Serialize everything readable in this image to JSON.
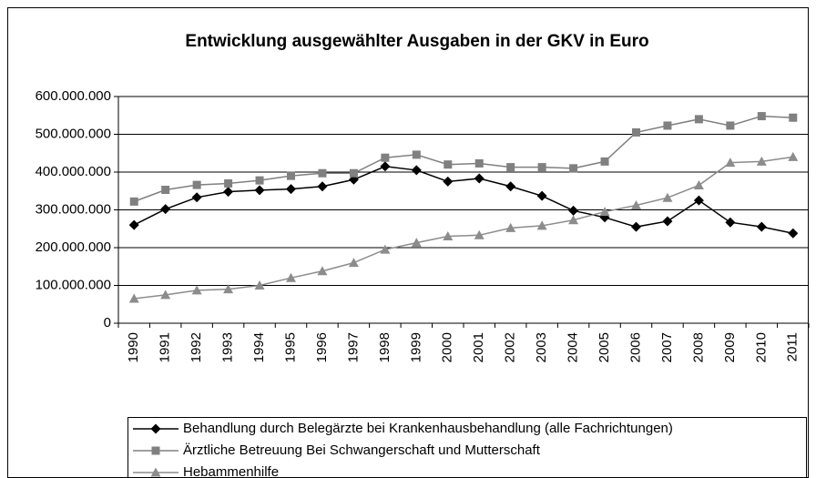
{
  "chart_data": {
    "type": "line",
    "title": "Entwicklung ausgewählter Ausgaben in der GKV in Euro",
    "categories": [
      "1990",
      "1991",
      "1992",
      "1993",
      "1994",
      "1995",
      "1996",
      "1997",
      "1998",
      "1999",
      "2000",
      "2001",
      "2002",
      "2003",
      "2004",
      "2005",
      "2006",
      "2007",
      "2008",
      "2009",
      "2010",
      "2011"
    ],
    "series": [
      {
        "name": "Behandlung durch Belegärzte bei Krankenhausbehandlung (alle Fachrichtungen)",
        "color": "#000000",
        "marker": "diamond",
        "values": [
          260000000,
          302000000,
          333000000,
          348000000,
          352000000,
          355000000,
          362000000,
          380000000,
          415000000,
          405000000,
          375000000,
          383000000,
          362000000,
          337000000,
          298000000,
          280000000,
          255000000,
          270000000,
          325000000,
          267000000,
          255000000,
          238000000
        ]
      },
      {
        "name": "Ärztliche Betreuung Bei Schwangerschaft und Mutterschaft",
        "color": "#808080",
        "marker": "square",
        "values": [
          322000000,
          353000000,
          366000000,
          370000000,
          378000000,
          390000000,
          397000000,
          397000000,
          438000000,
          446000000,
          420000000,
          423000000,
          413000000,
          413000000,
          410000000,
          428000000,
          505000000,
          523000000,
          540000000,
          523000000,
          548000000,
          544000000
        ]
      },
      {
        "name": "Hebammenhilfe",
        "color": "#8c8c8c",
        "marker": "triangle",
        "values": [
          65000000,
          75000000,
          87000000,
          90000000,
          100000000,
          120000000,
          138000000,
          160000000,
          195000000,
          213000000,
          230000000,
          233000000,
          252000000,
          258000000,
          273000000,
          295000000,
          312000000,
          332000000,
          365000000,
          425000000,
          428000000,
          440000000
        ]
      }
    ],
    "ylim": [
      0,
      600000000
    ],
    "yticks": [
      0,
      {
        "value": 100000000,
        "label": "100.000.000"
      },
      {
        "value": 200000000,
        "label": "200.000.000"
      },
      {
        "value": 300000000,
        "label": "300.000.000"
      },
      {
        "value": 400000000,
        "label": "400.000.000"
      },
      {
        "value": 500000000,
        "label": "500.000.000"
      },
      {
        "value": 600000000,
        "label": "600.000.000"
      }
    ],
    "grid": true
  }
}
